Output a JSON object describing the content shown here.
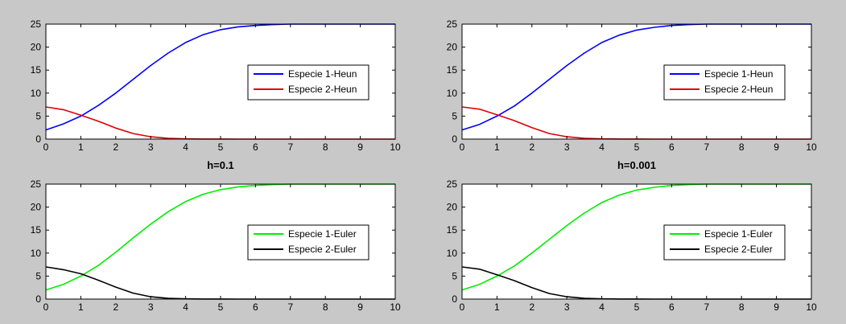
{
  "chart_data": [
    {
      "type": "line",
      "caption": "",
      "xlim": [
        0,
        10
      ],
      "ylim": [
        0,
        25
      ],
      "xticks": [
        0,
        1,
        2,
        3,
        4,
        5,
        6,
        7,
        8,
        9,
        10
      ],
      "yticks": [
        0,
        5,
        10,
        15,
        20,
        25
      ],
      "grid": false,
      "legend_position": "center-right",
      "x": [
        0,
        0.5,
        1,
        1.5,
        2,
        2.5,
        3,
        3.5,
        4,
        4.5,
        5,
        5.5,
        6,
        6.5,
        7,
        7.5,
        8,
        8.5,
        9,
        9.5,
        10
      ],
      "series": [
        {
          "name": "Especie 1-Heun",
          "color": "#0000ff",
          "values": [
            2.0,
            3.3,
            5.0,
            7.3,
            10.0,
            13.0,
            16.0,
            18.7,
            21.0,
            22.7,
            23.8,
            24.4,
            24.7,
            24.9,
            25.0,
            25.0,
            25.0,
            25.0,
            25.0,
            25.0,
            25.0
          ]
        },
        {
          "name": "Especie 2-Heun",
          "color": "#e00000",
          "values": [
            7.0,
            6.4,
            5.2,
            3.9,
            2.4,
            1.2,
            0.5,
            0.15,
            0.05,
            0.02,
            0.01,
            0,
            0,
            0,
            0,
            0,
            0,
            0,
            0,
            0,
            0
          ]
        }
      ]
    },
    {
      "type": "line",
      "caption": "",
      "xlim": [
        0,
        10
      ],
      "ylim": [
        0,
        25
      ],
      "xticks": [
        0,
        1,
        2,
        3,
        4,
        5,
        6,
        7,
        8,
        9,
        10
      ],
      "yticks": [
        0,
        5,
        10,
        15,
        20,
        25
      ],
      "grid": false,
      "legend_position": "center-right",
      "x": [
        0,
        0.5,
        1,
        1.5,
        2,
        2.5,
        3,
        3.5,
        4,
        4.5,
        5,
        5.5,
        6,
        6.5,
        7,
        7.5,
        8,
        8.5,
        9,
        9.5,
        10
      ],
      "series": [
        {
          "name": "Especie 1-Heun",
          "color": "#0000ff",
          "values": [
            2.0,
            3.2,
            5.0,
            7.2,
            10.0,
            13.0,
            16.0,
            18.7,
            21.0,
            22.6,
            23.7,
            24.3,
            24.7,
            24.9,
            25.0,
            25.0,
            25.0,
            25.0,
            25.0,
            25.0,
            25.0
          ]
        },
        {
          "name": "Especie 2-Heun",
          "color": "#e00000",
          "values": [
            7.0,
            6.5,
            5.3,
            4.0,
            2.5,
            1.2,
            0.5,
            0.15,
            0.05,
            0.02,
            0.01,
            0,
            0,
            0,
            0,
            0,
            0,
            0,
            0,
            0,
            0
          ]
        }
      ]
    },
    {
      "type": "line",
      "caption": "h=0.1",
      "xlim": [
        0,
        10
      ],
      "ylim": [
        0,
        25
      ],
      "xticks": [
        0,
        1,
        2,
        3,
        4,
        5,
        6,
        7,
        8,
        9,
        10
      ],
      "yticks": [
        0,
        5,
        10,
        15,
        20,
        25
      ],
      "grid": false,
      "legend_position": "center-right",
      "x": [
        0,
        0.5,
        1,
        1.5,
        2,
        2.5,
        3,
        3.5,
        4,
        4.5,
        5,
        5.5,
        6,
        6.5,
        7,
        7.5,
        8,
        8.5,
        9,
        9.5,
        10
      ],
      "series": [
        {
          "name": "Especie 1-Euler",
          "color": "#00ee00",
          "values": [
            2.0,
            3.2,
            5.0,
            7.3,
            10.2,
            13.3,
            16.3,
            19.0,
            21.2,
            22.8,
            23.8,
            24.4,
            24.7,
            24.9,
            25.0,
            25.0,
            25.0,
            25.0,
            25.0,
            25.0,
            25.0
          ]
        },
        {
          "name": "Especie 2-Euler",
          "color": "#000000",
          "values": [
            7.0,
            6.4,
            5.5,
            4.1,
            2.6,
            1.3,
            0.5,
            0.15,
            0.05,
            0.02,
            0.01,
            0,
            0,
            0,
            0,
            0,
            0,
            0,
            0,
            0,
            0
          ]
        }
      ]
    },
    {
      "type": "line",
      "caption": "h=0.001",
      "xlim": [
        0,
        10
      ],
      "ylim": [
        0,
        25
      ],
      "xticks": [
        0,
        1,
        2,
        3,
        4,
        5,
        6,
        7,
        8,
        9,
        10
      ],
      "yticks": [
        0,
        5,
        10,
        15,
        20,
        25
      ],
      "grid": false,
      "legend_position": "center-right",
      "x": [
        0,
        0.5,
        1,
        1.5,
        2,
        2.5,
        3,
        3.5,
        4,
        4.5,
        5,
        5.5,
        6,
        6.5,
        7,
        7.5,
        8,
        8.5,
        9,
        9.5,
        10
      ],
      "series": [
        {
          "name": "Especie 1-Euler",
          "color": "#00ee00",
          "values": [
            2.0,
            3.2,
            5.0,
            7.2,
            10.0,
            13.0,
            16.0,
            18.7,
            21.0,
            22.6,
            23.7,
            24.3,
            24.7,
            24.9,
            25.0,
            25.0,
            25.0,
            25.0,
            25.0,
            25.0,
            25.0
          ]
        },
        {
          "name": "Especie 2-Euler",
          "color": "#000000",
          "values": [
            7.0,
            6.5,
            5.3,
            4.0,
            2.5,
            1.2,
            0.5,
            0.15,
            0.05,
            0.02,
            0.01,
            0,
            0,
            0,
            0,
            0,
            0,
            0,
            0,
            0,
            0
          ]
        }
      ]
    }
  ]
}
